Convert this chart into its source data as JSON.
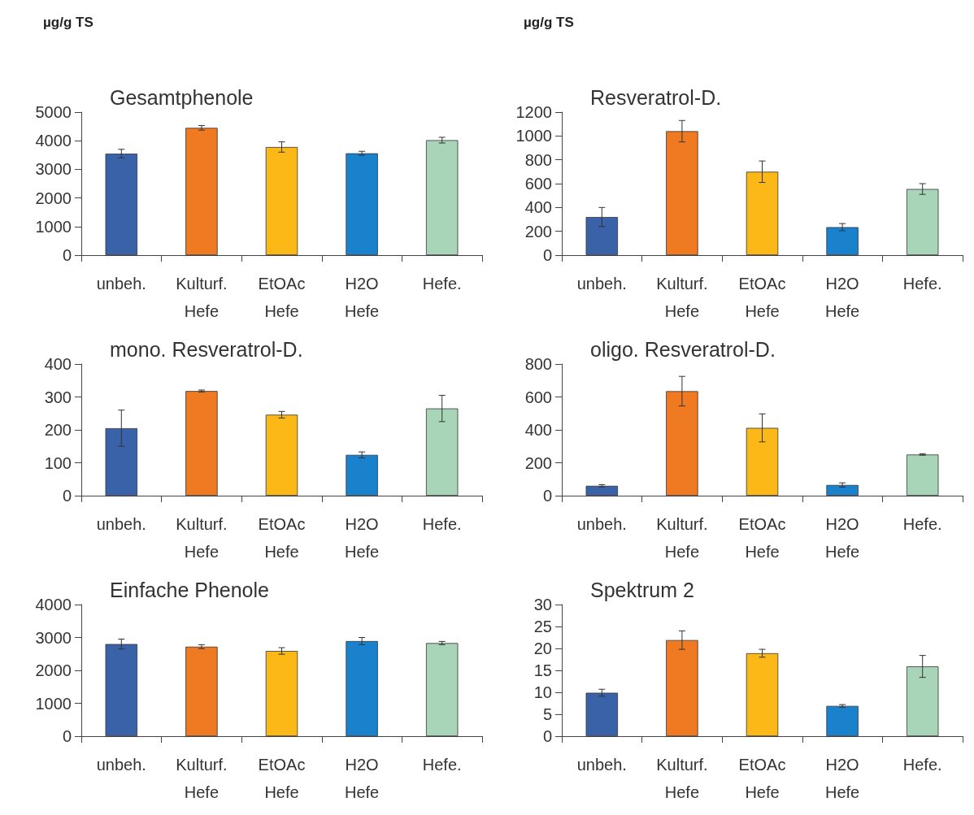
{
  "chart_data": [
    {
      "type": "bar",
      "title": "Gesamtphenole",
      "ylabel": "µg/g TS",
      "categories": [
        "unbeh.",
        "Kulturf. Hefe",
        "EtOAc Hefe",
        "H2O Hefe",
        "Hefe."
      ],
      "values": [
        3550,
        4450,
        3780,
        3560,
        4020
      ],
      "errors": [
        150,
        80,
        180,
        70,
        100
      ],
      "colors": [
        "#3a62a8",
        "#f07a22",
        "#fbb817",
        "#1a82cc",
        "#a8d4b8"
      ],
      "ylim": [
        0,
        5000
      ],
      "yticks": [
        0,
        1000,
        2000,
        3000,
        4000,
        5000
      ],
      "grid": false
    },
    {
      "type": "bar",
      "title": "Resveratrol-D.",
      "ylabel": "µg/g TS",
      "categories": [
        "unbeh.",
        "Kulturf. Hefe",
        "EtOAc Hefe",
        "H2O Hefe",
        "Hefe."
      ],
      "values": [
        320,
        1040,
        700,
        235,
        555
      ],
      "errors": [
        80,
        90,
        90,
        30,
        45
      ],
      "colors": [
        "#3a62a8",
        "#f07a22",
        "#fbb817",
        "#1a82cc",
        "#a8d4b8"
      ],
      "ylim": [
        0,
        1200
      ],
      "yticks": [
        0,
        200,
        400,
        600,
        800,
        1000,
        1200
      ],
      "grid": false
    },
    {
      "type": "bar",
      "title": "mono. Resveratrol-D.",
      "categories": [
        "unbeh.",
        "Kulturf. Hefe",
        "EtOAc Hefe",
        "H2O Hefe",
        "Hefe."
      ],
      "values": [
        205,
        318,
        246,
        124,
        265
      ],
      "errors": [
        55,
        3,
        10,
        9,
        40
      ],
      "colors": [
        "#3a62a8",
        "#f07a22",
        "#fbb817",
        "#1a82cc",
        "#a8d4b8"
      ],
      "ylim": [
        0,
        400
      ],
      "yticks": [
        0,
        100,
        200,
        300,
        400
      ],
      "grid": false
    },
    {
      "type": "bar",
      "title": "oligo. Resveratrol-D.",
      "categories": [
        "unbeh.",
        "Kulturf. Hefe",
        "EtOAc Hefe",
        "H2O Hefe",
        "Hefe."
      ],
      "values": [
        60,
        635,
        412,
        65,
        250
      ],
      "errors": [
        7,
        90,
        85,
        13,
        4
      ],
      "colors": [
        "#3a62a8",
        "#f07a22",
        "#fbb817",
        "#1a82cc",
        "#a8d4b8"
      ],
      "ylim": [
        0,
        800
      ],
      "yticks": [
        0,
        200,
        400,
        600,
        800
      ],
      "grid": false
    },
    {
      "type": "bar",
      "title": "Einfache Phenole",
      "categories": [
        "unbeh.",
        "Kulturf. Hefe",
        "EtOAc Hefe",
        "H2O Hefe",
        "Hefe."
      ],
      "values": [
        2800,
        2720,
        2590,
        2890,
        2830
      ],
      "errors": [
        150,
        60,
        100,
        110,
        50
      ],
      "colors": [
        "#3a62a8",
        "#f07a22",
        "#fbb817",
        "#1a82cc",
        "#a8d4b8"
      ],
      "ylim": [
        0,
        4000
      ],
      "yticks": [
        0,
        1000,
        2000,
        3000,
        4000
      ],
      "grid": false
    },
    {
      "type": "bar",
      "title": "Spektrum 2",
      "categories": [
        "unbeh.",
        "Kulturf. Hefe",
        "EtOAc Hefe",
        "H2O Hefe",
        "Hefe."
      ],
      "values": [
        9.9,
        21.9,
        18.9,
        6.9,
        15.9
      ],
      "errors": [
        0.8,
        2.1,
        0.9,
        0.3,
        2.5
      ],
      "colors": [
        "#3a62a8",
        "#f07a22",
        "#fbb817",
        "#1a82cc",
        "#a8d4b8"
      ],
      "ylim": [
        0,
        30
      ],
      "yticks": [
        0,
        5,
        10,
        15,
        20,
        25,
        30
      ],
      "grid": false
    }
  ]
}
